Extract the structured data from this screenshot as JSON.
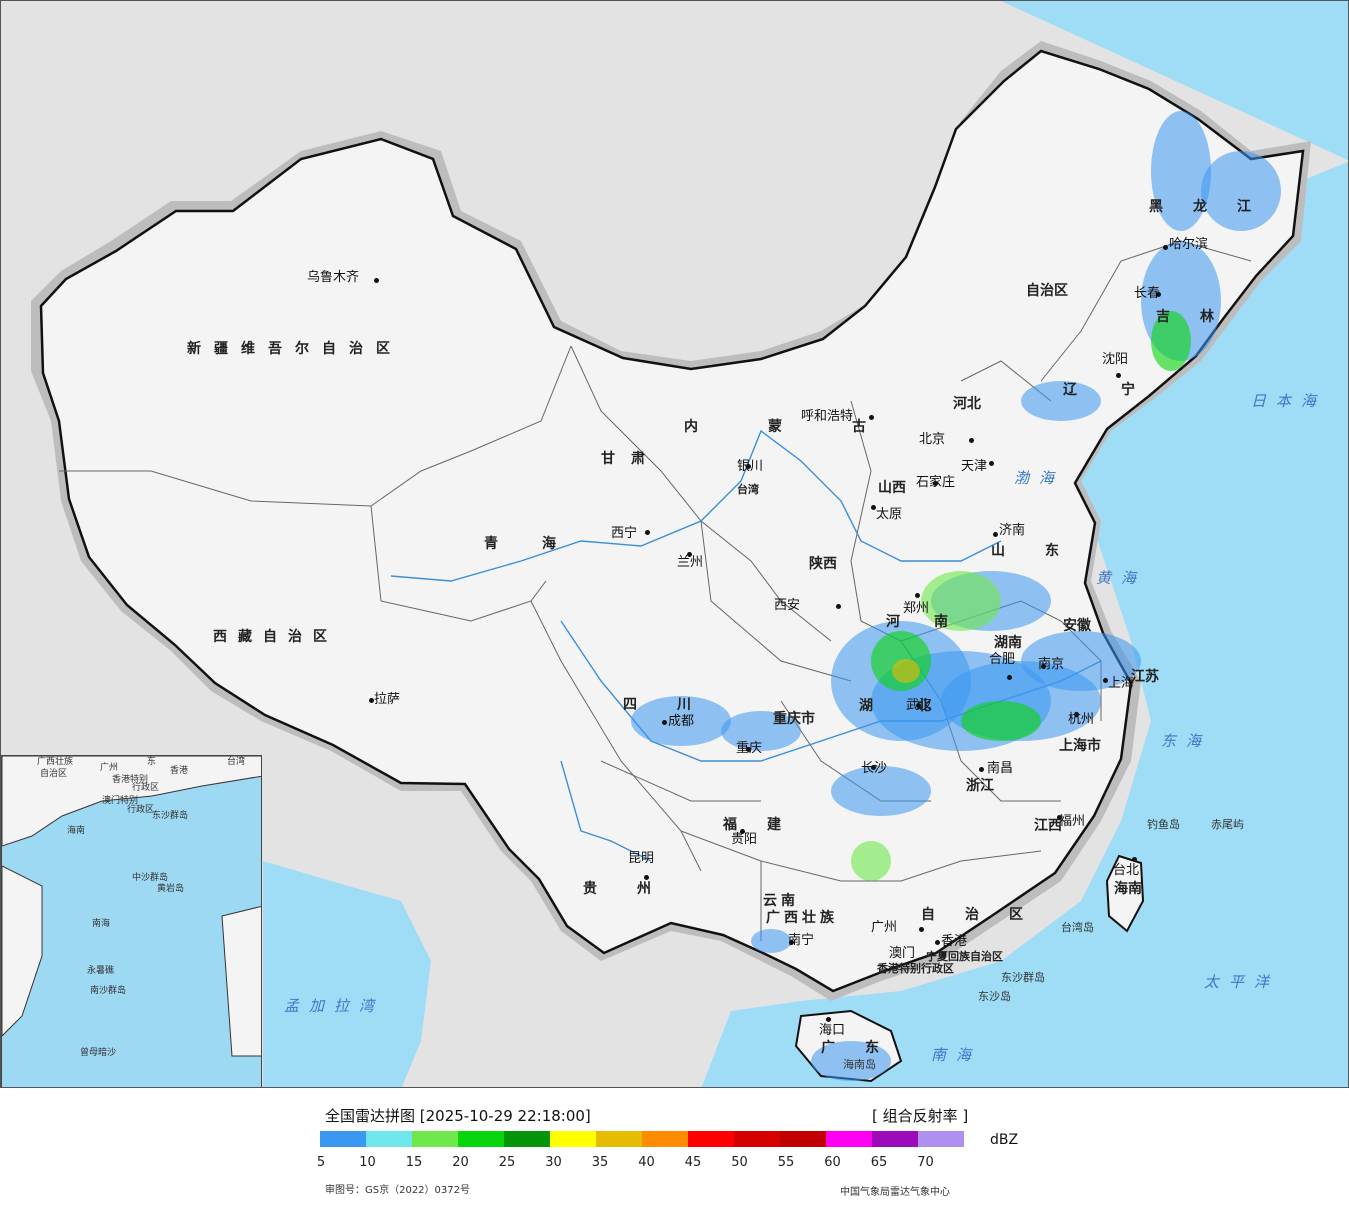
{
  "map": {
    "cities": [
      {
        "name": "乌鲁木齐"
      },
      {
        "name": "拉萨"
      },
      {
        "name": "西宁"
      },
      {
        "name": "兰州"
      },
      {
        "name": "银川"
      },
      {
        "name": "呼和浩特"
      },
      {
        "name": "北京"
      },
      {
        "name": "天津"
      },
      {
        "name": "石家庄"
      },
      {
        "name": "太原"
      },
      {
        "name": "济南"
      },
      {
        "name": "西安"
      },
      {
        "name": "郑州"
      },
      {
        "name": "成都"
      },
      {
        "name": "重庆"
      },
      {
        "name": "武汉"
      },
      {
        "name": "合肥"
      },
      {
        "name": "南京"
      },
      {
        "name": "上海"
      },
      {
        "name": "杭州"
      },
      {
        "name": "长沙"
      },
      {
        "name": "南昌"
      },
      {
        "name": "福州"
      },
      {
        "name": "贵阳"
      },
      {
        "name": "昆明"
      },
      {
        "name": "南宁"
      },
      {
        "name": "广州"
      },
      {
        "name": "香港"
      },
      {
        "name": "澳门"
      },
      {
        "name": "海口"
      },
      {
        "name": "沈阳"
      },
      {
        "name": "长春"
      },
      {
        "name": "哈尔滨"
      },
      {
        "name": "台北"
      }
    ],
    "regions": [
      {
        "name": "新疆维吾尔自治区"
      },
      {
        "name": "西藏自治区"
      },
      {
        "name": "青海"
      },
      {
        "name": "甘肃"
      },
      {
        "name": "内蒙古"
      },
      {
        "name": "自治区"
      },
      {
        "name": "黑龙江"
      },
      {
        "name": "吉林"
      },
      {
        "name": "辽宁"
      },
      {
        "name": "河北"
      },
      {
        "name": "山西"
      },
      {
        "name": "山东"
      },
      {
        "name": "陕西"
      },
      {
        "name": "河南"
      },
      {
        "name": "四川"
      },
      {
        "name": "重庆市"
      },
      {
        "name": "湖北"
      },
      {
        "name": "湖南"
      },
      {
        "name": "安徽"
      },
      {
        "name": "江苏"
      },
      {
        "name": "上海市"
      },
      {
        "name": "浙江"
      },
      {
        "name": "江西"
      },
      {
        "name": "福建"
      },
      {
        "name": "贵州"
      },
      {
        "name": "云南"
      },
      {
        "name": "广西壮族"
      },
      {
        "name": "自治区"
      },
      {
        "name": "广东"
      },
      {
        "name": "海南"
      },
      {
        "name": "台湾"
      },
      {
        "name": "宁夏回族自治区"
      },
      {
        "name": "香港特别行政区"
      },
      {
        "name": "澳门特别行政区"
      }
    ],
    "seas": [
      {
        "name": "日本海"
      },
      {
        "name": "渤海"
      },
      {
        "name": "黄海"
      },
      {
        "name": "东海"
      },
      {
        "name": "太平洋"
      },
      {
        "name": "南海"
      },
      {
        "name": "孟加拉湾"
      }
    ],
    "islands": [
      {
        "name": "钓鱼岛"
      },
      {
        "name": "赤尾屿"
      },
      {
        "name": "台湾岛"
      },
      {
        "name": "东沙群岛"
      },
      {
        "name": "东沙岛"
      },
      {
        "name": "海南岛"
      }
    ]
  },
  "inset": {
    "labels": [
      {
        "text": "广西壮族"
      },
      {
        "text": "自治区"
      },
      {
        "text": "广州"
      },
      {
        "text": "东"
      },
      {
        "text": "香港"
      },
      {
        "text": "台湾"
      },
      {
        "text": "香港特别"
      },
      {
        "text": "行政区"
      },
      {
        "text": "澳门特别"
      },
      {
        "text": "行政区"
      },
      {
        "text": "东沙群岛"
      },
      {
        "text": "海南"
      },
      {
        "text": "中沙群岛"
      },
      {
        "text": "黄岩岛"
      },
      {
        "text": "南海"
      },
      {
        "text": "永暑礁"
      },
      {
        "text": "南沙群岛"
      },
      {
        "text": "曾母暗沙"
      }
    ]
  },
  "legend": {
    "title": "全国雷达拼图 [2025-10-29 22:18:00]",
    "product": "[ 组合反射率 ]",
    "unit": "dBZ",
    "colors": [
      "#3b98f0",
      "#6de6ec",
      "#6ee84a",
      "#09d50b",
      "#049408",
      "#ffff00",
      "#e7bc00",
      "#ff8c00",
      "#ff0000",
      "#d60000",
      "#c00000",
      "#ff00f2",
      "#9c0ab9",
      "#ad90f0"
    ],
    "ticks": [
      "5",
      "10",
      "15",
      "20",
      "25",
      "30",
      "35",
      "40",
      "45",
      "50",
      "55",
      "60",
      "65",
      "70"
    ],
    "review_number": "审图号：GS京（2022）0372号",
    "source": "中国气象局雷达气象中心"
  }
}
